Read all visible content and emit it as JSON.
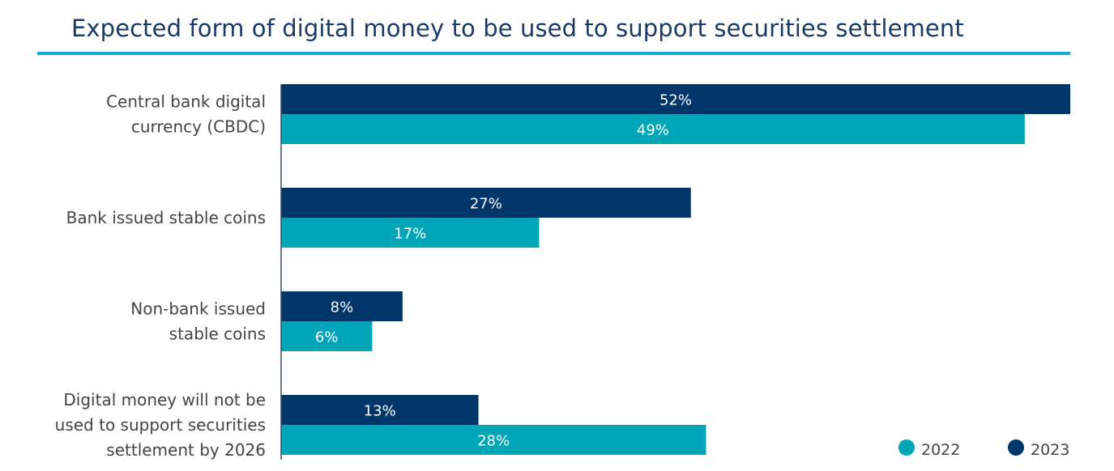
{
  "chart_data": {
    "type": "bar",
    "orientation": "horizontal",
    "title": "Expected form of digital money to be used to support securities settlement",
    "categories": [
      [
        "Central bank digital",
        "currency (CBDC)"
      ],
      [
        "Bank issued stable coins"
      ],
      [
        "Non-bank issued",
        "stable coins"
      ],
      [
        "Digital money will not be",
        "used to support securities",
        "settlement by 2026"
      ]
    ],
    "series": [
      {
        "name": "2023",
        "color": "#00366a",
        "values": [
          52,
          27,
          8,
          13
        ]
      },
      {
        "name": "2022",
        "color": "#00a6b7",
        "values": [
          49,
          17,
          6,
          28
        ]
      }
    ],
    "value_suffix": "%",
    "xlim": [
      0,
      52
    ],
    "grid": false,
    "legend": {
      "placement": "bottom-right",
      "order": [
        "2022",
        "2023"
      ]
    }
  }
}
